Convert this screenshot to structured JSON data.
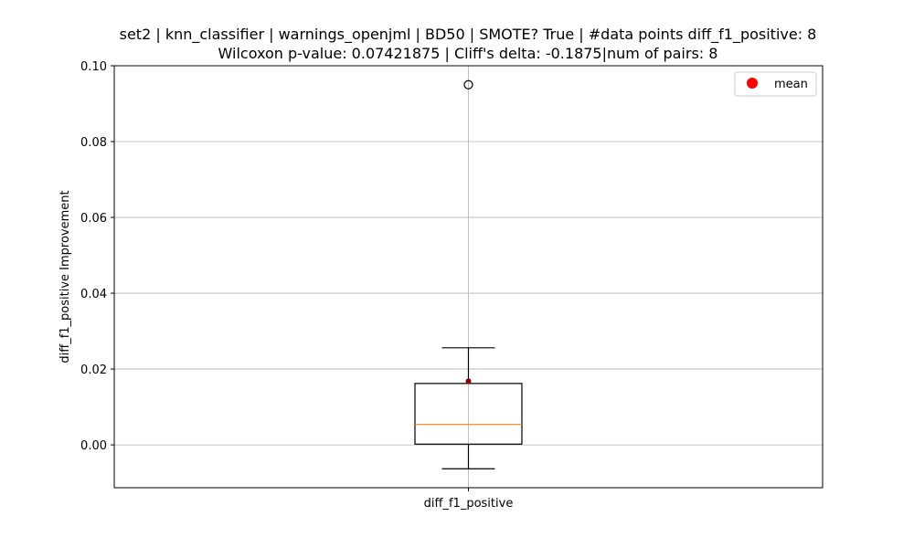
{
  "chart_data": {
    "type": "box",
    "title_line1": "set2 | knn_classifier | warnings_openjml | BD50 | SMOTE? True | #data points diff_f1_positive: 8",
    "title_line2": "Wilcoxon p-value: 0.07421875 | Cliff's delta: -0.1875|num of pairs: 8",
    "xlabel": "",
    "ylabel": "diff_f1_positive Improvement",
    "categories": [
      "diff_f1_positive"
    ],
    "ylim": [
      -0.0113,
      0.1
    ],
    "yticks": [
      0.0,
      0.02,
      0.04,
      0.06,
      0.08,
      0.1
    ],
    "ytick_labels": [
      "0.00",
      "0.02",
      "0.04",
      "0.06",
      "0.08",
      "0.10"
    ],
    "grid": true,
    "legend": {
      "position": "top-right",
      "entries": [
        {
          "label": "mean",
          "color": "#ff0000"
        }
      ]
    },
    "box": {
      "whisker_low": -0.0063,
      "q1": 0.0002,
      "median": 0.0054,
      "q3": 0.0162,
      "whisker_high": 0.0256,
      "mean": 0.0168,
      "outliers": [
        0.095
      ]
    },
    "colors": {
      "median": "#ff7f0e",
      "mean": "#ff0000",
      "mean_dot": "#8b0000",
      "grid": "#b0b0b0"
    }
  }
}
